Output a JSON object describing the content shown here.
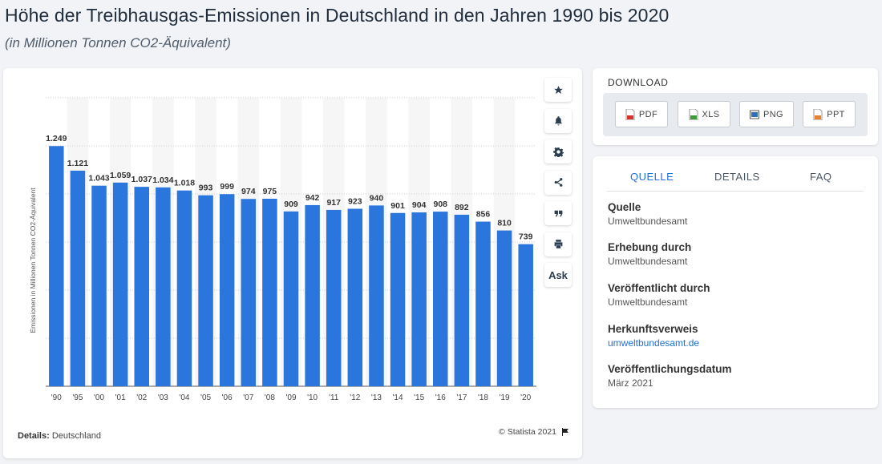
{
  "header": {
    "title": "Höhe der Treibhausgas-Emissionen in Deutschland in den Jahren 1990 bis 2020",
    "subtitle": "(in Millionen Tonnen CO2-Äquivalent)"
  },
  "chart_data": {
    "type": "bar",
    "categories": [
      "'90",
      "'95",
      "'00",
      "'01",
      "'02",
      "'03",
      "'04",
      "'05",
      "'06",
      "'07",
      "'08",
      "'09",
      "'10",
      "'11",
      "'12",
      "'13",
      "'14",
      "'15",
      "'16",
      "'17",
      "'18",
      "'19",
      "'20"
    ],
    "values": [
      1249,
      1121,
      1043,
      1059,
      1037,
      1034,
      1018,
      993,
      999,
      974,
      975,
      909,
      942,
      917,
      923,
      940,
      901,
      904,
      908,
      892,
      856,
      810,
      739
    ],
    "value_labels": [
      "1.249",
      "1.121",
      "1.043",
      "1.059",
      "1.037",
      "1.034",
      "1.018",
      "993",
      "999",
      "974",
      "975",
      "909",
      "942",
      "917",
      "923",
      "940",
      "901",
      "904",
      "908",
      "892",
      "856",
      "810",
      "739"
    ],
    "ylabel": "Emissionen in Millionen Tonnen CO2-Äquivalent",
    "ylim": [
      0,
      1500
    ],
    "y_grid_step": 250,
    "grid": true,
    "bar_color": "#2a76dd"
  },
  "chart_footer": {
    "details_label": "Details:",
    "details_value": "Deutschland",
    "copyright": "© Statista 2021"
  },
  "toolbar": {
    "items": [
      {
        "name": "star-icon"
      },
      {
        "name": "bell-icon"
      },
      {
        "name": "gear-icon"
      },
      {
        "name": "share-icon"
      },
      {
        "name": "quote-icon"
      },
      {
        "name": "print-icon"
      },
      {
        "name": "ask-button",
        "label": "Ask"
      }
    ]
  },
  "download": {
    "title": "DOWNLOAD",
    "buttons": [
      {
        "label": "PDF",
        "color": "#d9342b"
      },
      {
        "label": "XLS",
        "color": "#3e9b3a"
      },
      {
        "label": "PNG",
        "color": "#2f6fb8"
      },
      {
        "label": "PPT",
        "color": "#e8812a"
      }
    ]
  },
  "info": {
    "tabs": [
      "QUELLE",
      "DETAILS",
      "FAQ"
    ],
    "active_tab": "QUELLE",
    "sections": [
      {
        "heading": "Quelle",
        "value": "Umweltbundesamt"
      },
      {
        "heading": "Erhebung durch",
        "value": "Umweltbundesamt"
      },
      {
        "heading": "Veröffentlicht durch",
        "value": "Umweltbundesamt"
      },
      {
        "heading": "Herkunftsverweis",
        "value": "umweltbundesamt.de"
      },
      {
        "heading": "Veröffentlichungsdatum",
        "value": "März 2021"
      }
    ]
  },
  "colors": {
    "accent": "#1e6fd9"
  }
}
